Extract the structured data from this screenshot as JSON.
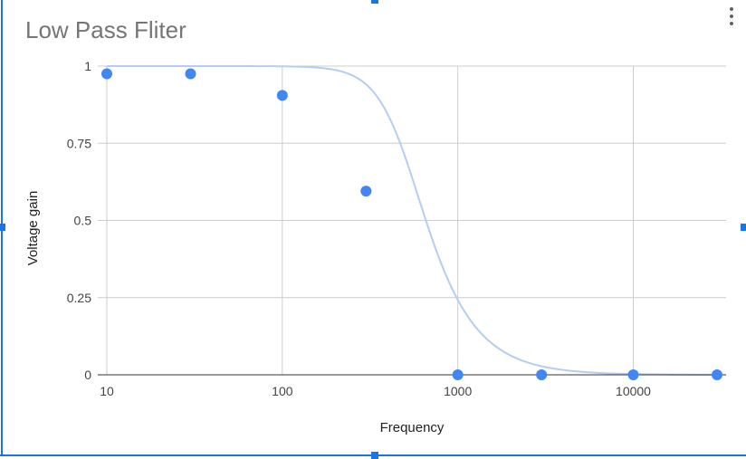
{
  "chart_data": {
    "type": "scatter",
    "title": "Low Pass Fliter",
    "xlabel": "Frequency",
    "ylabel": "Voltage gain",
    "x_scale": "log",
    "xlim": [
      10,
      30000
    ],
    "ylim": [
      0,
      1
    ],
    "x_ticks": [
      "10",
      "100",
      "1000",
      "10000"
    ],
    "y_ticks": [
      "0",
      "0.25",
      "0.5",
      "0.75",
      "1"
    ],
    "grid": true,
    "legend": "none",
    "points": {
      "x": [
        10,
        30,
        100,
        300,
        1000,
        3000,
        10000,
        30000
      ],
      "y": [
        0.975,
        0.975,
        0.905,
        0.595,
        0.0,
        0.0,
        0.0,
        0.0
      ]
    },
    "trendline": {
      "type": "low-pass fit",
      "cutoff_hz": 500,
      "order": 2
    },
    "colors": {
      "points": "#4285f4",
      "trendline": "#b3cdf3",
      "grid": "#cccccc",
      "baseline": "#333333"
    }
  },
  "menu": {
    "icon": "more-vert-icon"
  }
}
